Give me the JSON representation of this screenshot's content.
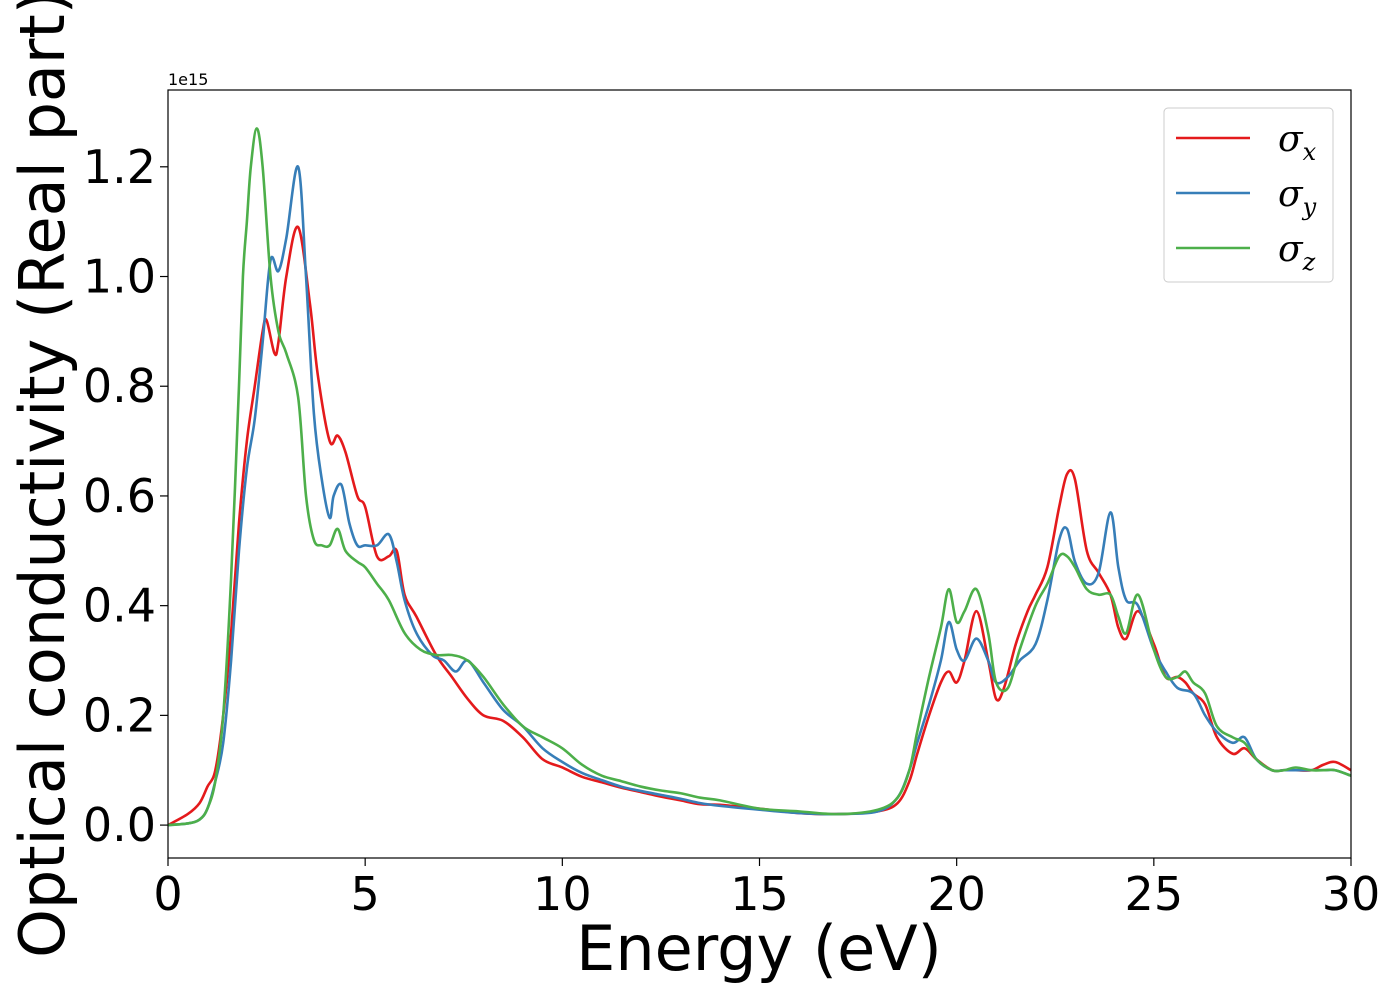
{
  "chart_data": {
    "type": "line",
    "title": "",
    "xlabel": "Energy (eV)",
    "ylabel": "Optical conductivity (Real part)",
    "y_offset_label": "1e15",
    "xlim": [
      0,
      30
    ],
    "ylim": [
      -0.06,
      1.34
    ],
    "x_ticks": [
      0,
      5,
      10,
      15,
      20,
      25,
      30
    ],
    "x_tick_labels": [
      "0",
      "5",
      "10",
      "15",
      "20",
      "25",
      "30"
    ],
    "y_ticks": [
      0.0,
      0.2,
      0.4,
      0.6,
      0.8,
      1.0,
      1.2
    ],
    "y_tick_labels": [
      "0.0",
      "0.2",
      "0.4",
      "0.6",
      "0.8",
      "1.0",
      "1.2"
    ],
    "grid": false,
    "legend_position": "top-right",
    "series": [
      {
        "name": "σx",
        "symbol": "σ",
        "subscript": "x",
        "color": "#e41a1c",
        "x": [
          0,
          0.5,
          0.8,
          1.0,
          1.2,
          1.4,
          1.6,
          1.8,
          2.0,
          2.2,
          2.4,
          2.5,
          2.7,
          2.8,
          3.0,
          3.3,
          3.6,
          3.8,
          4.1,
          4.3,
          4.5,
          4.8,
          5.0,
          5.3,
          5.6,
          5.8,
          6.0,
          6.3,
          6.8,
          7.2,
          7.6,
          8.0,
          8.5,
          9.0,
          9.5,
          10.0,
          10.5,
          11.0,
          11.5,
          12.0,
          12.5,
          13.0,
          13.5,
          14.0,
          15.0,
          16.0,
          17.0,
          18.0,
          18.5,
          18.8,
          19.0,
          19.3,
          19.6,
          19.8,
          20.0,
          20.2,
          20.5,
          20.8,
          21.0,
          21.2,
          21.5,
          21.8,
          22.0,
          22.3,
          22.6,
          22.8,
          23.0,
          23.3,
          23.6,
          23.9,
          24.1,
          24.3,
          24.6,
          25.0,
          25.3,
          25.6,
          25.8,
          26.0,
          26.3,
          26.6,
          27.0,
          27.3,
          27.6,
          28.0,
          28.3,
          28.6,
          29.0,
          29.3,
          29.6,
          30.0
        ],
        "y": [
          0.0,
          0.02,
          0.04,
          0.07,
          0.1,
          0.2,
          0.35,
          0.55,
          0.7,
          0.8,
          0.9,
          0.92,
          0.86,
          0.88,
          1.0,
          1.09,
          0.95,
          0.82,
          0.7,
          0.71,
          0.68,
          0.6,
          0.58,
          0.49,
          0.49,
          0.5,
          0.42,
          0.38,
          0.31,
          0.27,
          0.23,
          0.2,
          0.19,
          0.16,
          0.12,
          0.105,
          0.088,
          0.078,
          0.068,
          0.06,
          0.052,
          0.045,
          0.038,
          0.037,
          0.03,
          0.022,
          0.02,
          0.025,
          0.04,
          0.08,
          0.13,
          0.2,
          0.26,
          0.28,
          0.26,
          0.3,
          0.39,
          0.3,
          0.23,
          0.25,
          0.33,
          0.39,
          0.42,
          0.47,
          0.58,
          0.64,
          0.63,
          0.5,
          0.46,
          0.42,
          0.36,
          0.34,
          0.39,
          0.33,
          0.27,
          0.27,
          0.26,
          0.24,
          0.22,
          0.16,
          0.13,
          0.14,
          0.12,
          0.1,
          0.1,
          0.1,
          0.1,
          0.11,
          0.115,
          0.1
        ]
      },
      {
        "name": "σy",
        "symbol": "σ",
        "subscript": "y",
        "color": "#377eb8",
        "x": [
          0,
          0.5,
          0.8,
          1.0,
          1.2,
          1.4,
          1.6,
          1.8,
          2.0,
          2.2,
          2.4,
          2.6,
          2.8,
          3.0,
          3.3,
          3.5,
          3.7,
          3.9,
          4.1,
          4.2,
          4.4,
          4.6,
          4.8,
          5.0,
          5.3,
          5.6,
          5.8,
          6.0,
          6.3,
          6.7,
          7.0,
          7.3,
          7.6,
          8.0,
          8.5,
          9.0,
          9.5,
          10.0,
          10.5,
          11.0,
          11.5,
          12.0,
          12.5,
          13.0,
          13.5,
          14.0,
          15.0,
          16.0,
          17.0,
          18.0,
          18.5,
          18.8,
          19.0,
          19.3,
          19.6,
          19.8,
          20.0,
          20.2,
          20.5,
          20.8,
          21.0,
          21.3,
          21.6,
          22.0,
          22.3,
          22.6,
          22.8,
          23.0,
          23.3,
          23.6,
          23.9,
          24.1,
          24.3,
          24.6,
          25.0,
          25.3,
          25.6,
          26.0,
          26.3,
          26.6,
          27.0,
          27.3,
          27.6,
          28.0,
          28.3,
          28.6,
          29.0,
          29.3,
          29.6,
          30.0
        ],
        "y": [
          0.0,
          0.003,
          0.01,
          0.03,
          0.08,
          0.15,
          0.3,
          0.5,
          0.65,
          0.74,
          0.88,
          1.03,
          1.01,
          1.07,
          1.2,
          1.0,
          0.75,
          0.63,
          0.56,
          0.6,
          0.62,
          0.55,
          0.51,
          0.51,
          0.51,
          0.53,
          0.48,
          0.41,
          0.35,
          0.31,
          0.3,
          0.28,
          0.3,
          0.26,
          0.21,
          0.18,
          0.14,
          0.115,
          0.095,
          0.082,
          0.07,
          0.062,
          0.055,
          0.048,
          0.04,
          0.035,
          0.028,
          0.022,
          0.02,
          0.025,
          0.05,
          0.1,
          0.15,
          0.22,
          0.3,
          0.37,
          0.32,
          0.3,
          0.34,
          0.3,
          0.26,
          0.27,
          0.3,
          0.33,
          0.41,
          0.52,
          0.54,
          0.48,
          0.44,
          0.46,
          0.57,
          0.47,
          0.41,
          0.4,
          0.32,
          0.28,
          0.25,
          0.24,
          0.2,
          0.17,
          0.15,
          0.16,
          0.12,
          0.1,
          0.1,
          0.1,
          0.1,
          0.1,
          0.1,
          0.09
        ]
      },
      {
        "name": "σz",
        "symbol": "σ",
        "subscript": "z",
        "color": "#4daf4a",
        "x": [
          0,
          0.5,
          0.8,
          1.0,
          1.2,
          1.4,
          1.6,
          1.8,
          1.9,
          2.0,
          2.1,
          2.25,
          2.4,
          2.6,
          2.8,
          3.0,
          3.3,
          3.5,
          3.7,
          3.9,
          4.1,
          4.3,
          4.5,
          4.8,
          5.0,
          5.3,
          5.6,
          6.0,
          6.4,
          6.8,
          7.2,
          7.6,
          8.0,
          8.5,
          9.0,
          9.5,
          10.0,
          10.5,
          11.0,
          11.5,
          12.0,
          12.5,
          13.0,
          13.5,
          14.0,
          15.0,
          16.0,
          17.0,
          18.0,
          18.5,
          18.8,
          19.0,
          19.3,
          19.6,
          19.8,
          20.0,
          20.2,
          20.5,
          20.8,
          21.0,
          21.3,
          21.6,
          22.0,
          22.3,
          22.6,
          22.8,
          23.0,
          23.3,
          23.6,
          23.9,
          24.1,
          24.3,
          24.6,
          25.0,
          25.3,
          25.6,
          25.8,
          26.0,
          26.3,
          26.6,
          27.0,
          27.3,
          27.6,
          28.0,
          28.3,
          28.6,
          29.0,
          29.3,
          29.6,
          30.0
        ],
        "y": [
          0.0,
          0.003,
          0.01,
          0.03,
          0.08,
          0.2,
          0.45,
          0.8,
          1.0,
          1.1,
          1.2,
          1.27,
          1.2,
          1.0,
          0.9,
          0.86,
          0.78,
          0.6,
          0.52,
          0.51,
          0.51,
          0.54,
          0.5,
          0.48,
          0.47,
          0.44,
          0.41,
          0.35,
          0.32,
          0.31,
          0.31,
          0.3,
          0.27,
          0.22,
          0.18,
          0.16,
          0.14,
          0.11,
          0.09,
          0.08,
          0.07,
          0.063,
          0.058,
          0.05,
          0.045,
          0.03,
          0.025,
          0.02,
          0.028,
          0.05,
          0.1,
          0.17,
          0.27,
          0.36,
          0.43,
          0.37,
          0.39,
          0.43,
          0.35,
          0.26,
          0.25,
          0.32,
          0.4,
          0.44,
          0.49,
          0.49,
          0.47,
          0.43,
          0.42,
          0.42,
          0.38,
          0.35,
          0.42,
          0.32,
          0.27,
          0.27,
          0.28,
          0.26,
          0.24,
          0.18,
          0.16,
          0.15,
          0.12,
          0.1,
          0.1,
          0.105,
          0.1,
          0.1,
          0.1,
          0.09
        ]
      }
    ]
  }
}
